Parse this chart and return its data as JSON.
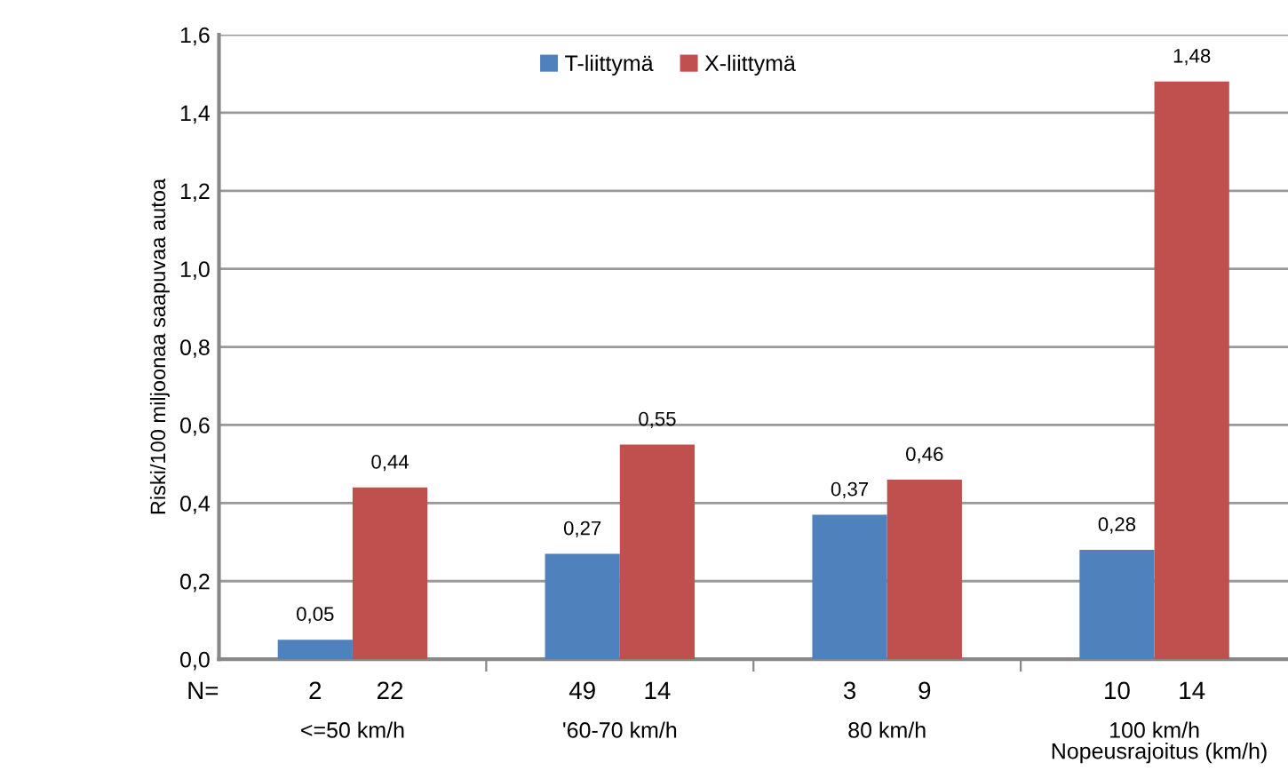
{
  "chart_data": {
    "type": "bar",
    "categories": [
      "<=50 km/h",
      "'60-70 km/h",
      "80 km/h",
      "100 km/h"
    ],
    "series": [
      {
        "name": "T-liittymä",
        "color": "#4f81bd",
        "values": [
          0.05,
          0.27,
          0.37,
          0.28
        ],
        "value_labels": [
          "0,05",
          "0,27",
          "0,37",
          "0,28"
        ]
      },
      {
        "name": "X-liittymä",
        "color": "#c0504d",
        "values": [
          0.44,
          0.55,
          0.46,
          1.48
        ],
        "value_labels": [
          "0,44",
          "0,55",
          "0,46",
          "1,48"
        ]
      }
    ],
    "ylabel": "Riski/100 miljoonaa saapuvaa autoa",
    "xlabel": "Nopeusrajoitus (km/h)",
    "ylim": [
      0,
      1.6
    ],
    "yticks": [
      {
        "value": 0,
        "label": "0,0"
      },
      {
        "value": 0.2,
        "label": "0,2"
      },
      {
        "value": 0.4,
        "label": "0,4"
      },
      {
        "value": 0.6,
        "label": "0,6"
      },
      {
        "value": 0.8,
        "label": "0,8"
      },
      {
        "value": 1.0,
        "label": "1,0"
      },
      {
        "value": 1.2,
        "label": "1,2"
      },
      {
        "value": 1.4,
        "label": "1,4"
      },
      {
        "value": 1.6,
        "label": "1,6"
      }
    ],
    "grid": "y",
    "legend": "top",
    "annotations": [
      "N=",
      "2",
      "22",
      "49",
      "14",
      "3",
      "9",
      "10",
      "14"
    ]
  }
}
